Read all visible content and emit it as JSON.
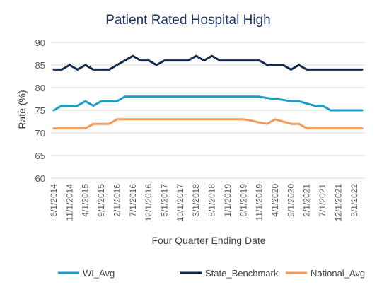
{
  "chart_data": {
    "type": "line",
    "title": "Patient Rated Hospital High",
    "xlabel": "Four Quarter Ending Date",
    "ylabel": "Rate (%)",
    "ylim": [
      60,
      90
    ],
    "yticks": [
      60,
      65,
      70,
      75,
      80,
      85,
      90
    ],
    "grid": true,
    "legend_position": "bottom",
    "x": [
      "6/1/2014",
      "9/1/2014",
      "11/1/2014",
      "2/1/2015",
      "4/1/2015",
      "6/1/2015",
      "9/1/2015",
      "11/1/2015",
      "2/1/2016",
      "4/1/2016",
      "7/1/2016",
      "9/1/2016",
      "12/1/2016",
      "2/1/2017",
      "5/1/2017",
      "7/1/2017",
      "10/1/2017",
      "12/1/2017",
      "3/1/2018",
      "5/1/2018",
      "8/1/2018",
      "10/1/2018",
      "1/1/2019",
      "3/1/2019",
      "6/1/2019",
      "8/1/2019",
      "11/1/2019",
      "1/1/2020",
      "4/1/2020",
      "6/1/2020",
      "9/1/2020",
      "11/1/2020",
      "2/1/2021",
      "4/1/2021",
      "7/1/2021",
      "9/1/2021",
      "12/1/2021",
      "2/1/2022",
      "5/1/2022",
      "7/1/2022"
    ],
    "x_tick_labels": [
      "6/1/2014",
      "11/1/2014",
      "4/1/2015",
      "9/1/2015",
      "2/1/2016",
      "7/1/2016",
      "12/1/2016",
      "5/1/2017",
      "10/1/2017",
      "3/1/2018",
      "8/1/2018",
      "1/1/2019",
      "6/1/2019",
      "11/1/2019",
      "4/1/2020",
      "9/1/2020",
      "2/1/2021",
      "7/1/2021",
      "12/1/2021",
      "5/1/2022"
    ],
    "series": [
      {
        "name": "WI_Avg",
        "color": "#1a9ec9",
        "values": [
          75,
          76,
          76,
          76,
          77,
          76,
          77,
          77,
          77,
          78,
          78,
          78,
          78,
          78,
          78,
          78,
          78,
          78,
          78,
          78,
          78,
          78,
          78,
          78,
          78,
          78,
          78,
          77.7,
          77.5,
          77.3,
          77,
          77,
          76.5,
          76,
          76,
          75,
          75,
          75,
          75,
          75
        ]
      },
      {
        "name": "State_Benchmark",
        "color": "#13294b",
        "values": [
          84,
          84,
          85,
          84,
          85,
          84,
          84,
          84,
          85,
          86,
          87,
          86,
          86,
          85,
          86,
          86,
          86,
          86,
          87,
          86,
          87,
          86,
          86,
          86,
          86,
          86,
          86,
          85,
          85,
          85,
          84,
          85,
          84,
          84,
          84,
          84,
          84,
          84,
          84,
          84
        ]
      },
      {
        "name": "National_Avg",
        "color": "#f39a5b",
        "values": [
          71,
          71,
          71,
          71,
          71,
          72,
          72,
          72,
          73,
          73,
          73,
          73,
          73,
          73,
          73,
          73,
          73,
          73,
          73,
          73,
          73,
          73,
          73,
          73,
          73,
          72.7,
          72.3,
          72,
          73,
          72.5,
          72,
          72,
          71,
          71,
          71,
          71,
          71,
          71,
          71,
          71
        ]
      }
    ]
  }
}
